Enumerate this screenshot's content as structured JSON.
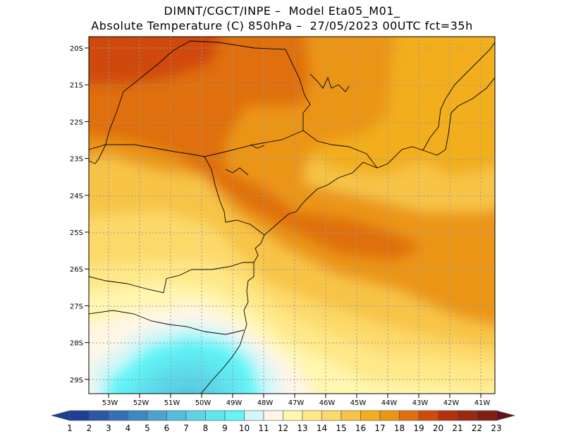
{
  "title_line1": "DIMNT/CGCT/INPE –  Model Eta05_M01_",
  "title_line2": "Absolute Temperature (C) 850hPa –  27/05/2023 00UTC fct=35h",
  "lat_labels": [
    "20S",
    "21S",
    "22S",
    "23S",
    "24S",
    "25S",
    "26S",
    "27S",
    "28S",
    "29S"
  ],
  "lon_labels": [
    "53W",
    "52W",
    "51W",
    "50W",
    "49W",
    "48W",
    "47W",
    "46W",
    "45W",
    "44W",
    "43W",
    "42W",
    "41W"
  ],
  "colorbar": {
    "labels": [
      "1",
      "2",
      "3",
      "4",
      "5",
      "6",
      "7",
      "8",
      "9",
      "10",
      "11",
      "12",
      "13",
      "14",
      "15",
      "16",
      "17",
      "18",
      "19",
      "20",
      "21",
      "22",
      "23"
    ],
    "colors": [
      "#1f3f95",
      "#2a57a6",
      "#3470b4",
      "#3d89c2",
      "#4aa3cf",
      "#55bddc",
      "#5cd4e6",
      "#5ee6ef",
      "#63f5f8",
      "#d5f6f8",
      "#fff6e6",
      "#fff6b0",
      "#fee888",
      "#fdd96a",
      "#f7c447",
      "#f2ae1e",
      "#eb9513",
      "#df6f0f",
      "#cf4a0a",
      "#b5310a",
      "#982a0f",
      "#7f1f12",
      "#65101a"
    ]
  }
}
